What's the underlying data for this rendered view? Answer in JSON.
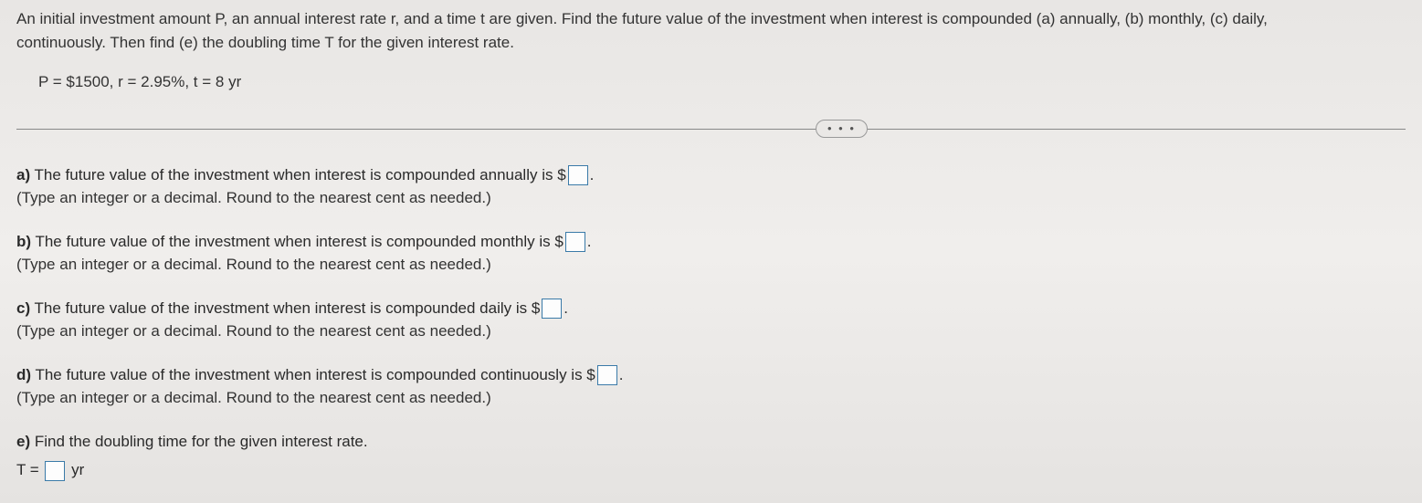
{
  "header": {
    "line1": "An initial investment amount P, an annual interest rate r, and a time t are given. Find the future value of the investment when interest is compounded (a) annually, (b) monthly, (c) daily,",
    "line2": "continuously. Then find (e) the doubling time T for the given interest rate."
  },
  "given": "P = $1500, r = 2.95%, t = 8 yr",
  "ellipsis": "• • •",
  "questions": {
    "a": {
      "label": "a)",
      "text_before": " The future value of the investment when interest is compounded annually is $",
      "text_after": ".",
      "hint": "(Type an integer or a decimal. Round to the nearest cent as needed.)"
    },
    "b": {
      "label": "b)",
      "text_before": " The future value of the investment when interest is compounded monthly is $",
      "text_after": ".",
      "hint": "(Type an integer or a decimal. Round to the nearest cent as needed.)"
    },
    "c": {
      "label": "c)",
      "text_before": " The future value of the investment when interest is compounded daily is $",
      "text_after": ".",
      "hint": "(Type an integer or a decimal. Round to the nearest cent as needed.)"
    },
    "d": {
      "label": "d)",
      "text_before": " The future value of the investment when interest is compounded continuously is $",
      "text_after": ".",
      "hint": "(Type an integer or a decimal. Round to the nearest cent as needed.)"
    },
    "e": {
      "label": "e)",
      "text": " Find the doubling time for the given interest rate.",
      "eq_before": "T = ",
      "eq_after": " yr"
    }
  },
  "colors": {
    "input_border": "#3a7aa8",
    "text": "#2a2a2a",
    "divider": "#888"
  }
}
